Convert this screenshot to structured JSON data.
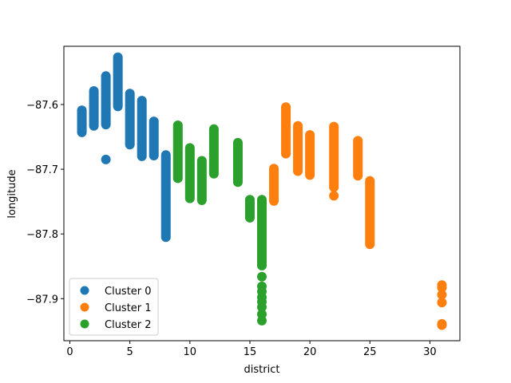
{
  "chart_data": {
    "type": "scatter",
    "title": "",
    "xlabel": "district",
    "ylabel": "longitude",
    "xlim": [
      -0.5,
      32.5
    ],
    "ylim": [
      -87.965,
      -87.51
    ],
    "x_ticks": [
      0,
      5,
      10,
      15,
      20,
      25,
      30
    ],
    "x_tick_labels": [
      "0",
      "5",
      "10",
      "15",
      "20",
      "25",
      "30"
    ],
    "y_ticks": [
      -87.6,
      -87.7,
      -87.8,
      -87.9
    ],
    "y_tick_labels": [
      "−87.6",
      "−87.7",
      "−87.8",
      "−87.9"
    ],
    "grid": false,
    "legend_position": "lower left",
    "series": [
      {
        "name": "Cluster 0",
        "color": "#1f77b4",
        "ranges": [
          {
            "x": 1,
            "ymin": -87.643,
            "ymax": -87.609
          },
          {
            "x": 2,
            "ymin": -87.633,
            "ymax": -87.579
          },
          {
            "x": 3,
            "ymin": -87.631,
            "ymax": -87.556
          },
          {
            "x": 4,
            "ymin": -87.603,
            "ymax": -87.527
          },
          {
            "x": 5,
            "ymin": -87.662,
            "ymax": -87.583
          },
          {
            "x": 6,
            "ymin": -87.68,
            "ymax": -87.594
          },
          {
            "x": 7,
            "ymin": -87.679,
            "ymax": -87.626
          },
          {
            "x": 8,
            "ymin": -87.805,
            "ymax": -87.678
          }
        ],
        "points": [
          {
            "x": 3,
            "y": -87.685
          }
        ]
      },
      {
        "name": "Cluster 1",
        "color": "#ff7f0e",
        "ranges": [
          {
            "x": 17,
            "ymin": -87.749,
            "ymax": -87.699
          },
          {
            "x": 18,
            "ymin": -87.676,
            "ymax": -87.604
          },
          {
            "x": 19,
            "ymin": -87.703,
            "ymax": -87.633
          },
          {
            "x": 20,
            "ymin": -87.709,
            "ymax": -87.647
          },
          {
            "x": 22,
            "ymin": -87.728,
            "ymax": -87.634
          },
          {
            "x": 24,
            "ymin": -87.71,
            "ymax": -87.656
          },
          {
            "x": 25,
            "ymin": -87.816,
            "ymax": -87.718
          }
        ],
        "points": [
          {
            "x": 22,
            "y": -87.741
          },
          {
            "x": 31,
            "y": -87.879
          },
          {
            "x": 31,
            "y": -87.883
          },
          {
            "x": 31,
            "y": -87.894
          },
          {
            "x": 31,
            "y": -87.906
          },
          {
            "x": 31,
            "y": -87.939
          },
          {
            "x": 31,
            "y": -87.941
          }
        ]
      },
      {
        "name": "Cluster 2",
        "color": "#2ca02c",
        "ranges": [
          {
            "x": 9,
            "ymin": -87.714,
            "ymax": -87.632
          },
          {
            "x": 10,
            "ymin": -87.745,
            "ymax": -87.667
          },
          {
            "x": 11,
            "ymin": -87.748,
            "ymax": -87.687
          },
          {
            "x": 12,
            "ymin": -87.707,
            "ymax": -87.638
          },
          {
            "x": 14,
            "ymin": -87.72,
            "ymax": -87.659
          },
          {
            "x": 15,
            "ymin": -87.775,
            "ymax": -87.747
          },
          {
            "x": 16,
            "ymin": -87.849,
            "ymax": -87.747
          }
        ],
        "points": [
          {
            "x": 16,
            "y": -87.866
          },
          {
            "x": 16,
            "y": -87.881
          },
          {
            "x": 16,
            "y": -87.889
          },
          {
            "x": 16,
            "y": -87.898
          },
          {
            "x": 16,
            "y": -87.905
          },
          {
            "x": 16,
            "y": -87.913
          },
          {
            "x": 16,
            "y": -87.924
          },
          {
            "x": 16,
            "y": -87.934
          }
        ]
      }
    ]
  }
}
